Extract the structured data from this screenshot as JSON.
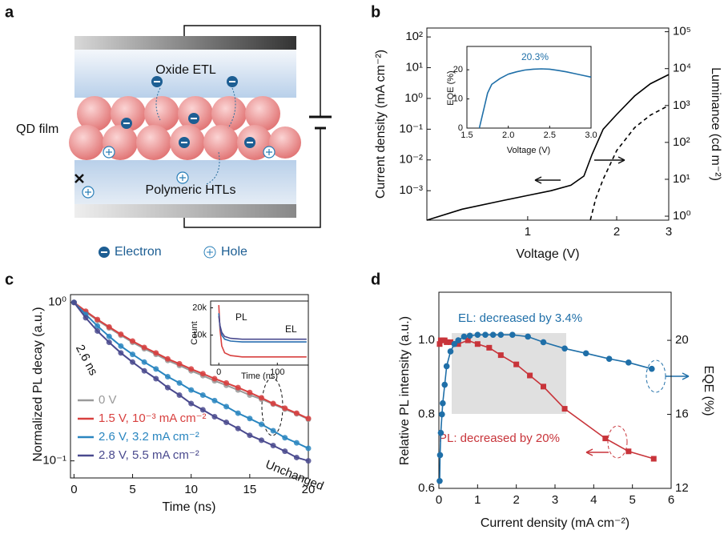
{
  "panel_labels": [
    "a",
    "b",
    "c",
    "d"
  ],
  "diagram": {
    "etl": "Oxide ETL",
    "qd": "QD film",
    "htl": "Polymeric HTLs",
    "legend_electron": "Electron",
    "legend_hole": "Hole"
  },
  "chart_data": [
    {
      "type": "line",
      "xlabel": "Voltage (V)",
      "ylabel": "Current density (mA cm⁻²)",
      "y2label": "Luminance (cd m⁻²)",
      "xscale": "log",
      "yscale": "log",
      "y2scale": "log",
      "xlim": [
        0.456,
        3
      ],
      "ylim": [
        0.00011,
        195
      ],
      "y2lim": [
        0.78,
        126000
      ],
      "xticks": [
        1,
        2,
        3
      ],
      "yticks": [
        {
          "value": 0.001,
          "label": "10⁻³"
        },
        {
          "value": 0.01,
          "label": "10⁻²"
        },
        {
          "value": 0.1,
          "label": "10⁻¹"
        },
        {
          "value": 1,
          "label": "10⁰"
        },
        {
          "value": 10,
          "label": "10¹"
        },
        {
          "value": 100,
          "label": "10²"
        }
      ],
      "y2ticks": [
        {
          "value": 1,
          "label": "10⁰"
        },
        {
          "value": 10,
          "label": "10¹"
        },
        {
          "value": 100,
          "label": "10²"
        },
        {
          "value": 1000,
          "label": "10³"
        },
        {
          "value": 10000,
          "label": "10⁴"
        },
        {
          "value": 100000,
          "label": "10⁵"
        }
      ],
      "series": [
        {
          "color": "#000000",
          "x": [
            0.456,
            0.6,
            0.8,
            1.0,
            1.2,
            1.4,
            1.55,
            1.65,
            1.8,
            2.0,
            2.3,
            2.6,
            3.0
          ],
          "values": [
            0.00011,
            0.00025,
            0.00045,
            0.0007,
            0.001,
            0.0015,
            0.003,
            0.015,
            0.1,
            0.3,
            1.2,
            3,
            6
          ]
        },
        {
          "color": "#000000",
          "line_style": "dashed",
          "axis": "y2",
          "x": [
            1.63,
            1.7,
            1.8,
            2.0,
            2.3,
            2.6,
            3.0
          ],
          "values": [
            0.8,
            3,
            10,
            60,
            250,
            550,
            1000
          ]
        }
      ]
    },
    {
      "type": "line",
      "xlabel": "Voltage (V)",
      "ylabel": "EQE (%)",
      "xlim": [
        1.5,
        3.0
      ],
      "ylim": [
        0,
        28
      ],
      "xticks": [
        {
          "value": 1.5,
          "label": "1.5"
        },
        {
          "value": 2,
          "label": "2.0"
        },
        {
          "value": 2.5,
          "label": "2.5"
        },
        {
          "value": 3,
          "label": "3.0"
        }
      ],
      "yticks": [
        0,
        10,
        20
      ],
      "annotations": [
        "20.3%"
      ],
      "series": [
        {
          "color": "#1f6fa8",
          "x": [
            1.65,
            1.7,
            1.75,
            1.8,
            1.9,
            2.0,
            2.1,
            2.2,
            2.3,
            2.4,
            2.5,
            2.6,
            2.7,
            2.8,
            2.9,
            3.0
          ],
          "values": [
            0,
            6,
            12,
            15,
            17,
            18.5,
            19.3,
            19.9,
            20.2,
            20.3,
            20.2,
            19.8,
            19.3,
            18.7,
            18.1,
            17.5
          ]
        }
      ]
    },
    {
      "type": "scatter",
      "xlabel": "Time (ns)",
      "ylabel": "Normalized PL decay (a.u.)",
      "yscale": "log",
      "xlim": [
        -0.3,
        20
      ],
      "ylim": [
        0.078,
        1.12
      ],
      "xticks": [
        0,
        5,
        10,
        15,
        20
      ],
      "yticks": [
        {
          "value": 0.1,
          "label": "10⁻¹"
        },
        {
          "value": 1,
          "label": "10⁰"
        }
      ],
      "annotations": [
        "2.6 ns",
        "Unchanged"
      ],
      "x": [
        0,
        1,
        2,
        3,
        4,
        5,
        6,
        7,
        8,
        9,
        10,
        11,
        12,
        13,
        14,
        15,
        16,
        17,
        18,
        19,
        20
      ],
      "series": [
        {
          "name": "0 V",
          "color": "#9a9a9a",
          "values": [
            1,
            0.87,
            0.77,
            0.69,
            0.62,
            0.56,
            0.51,
            0.47,
            0.43,
            0.4,
            0.37,
            0.345,
            0.32,
            0.3,
            0.28,
            0.26,
            0.245,
            0.228,
            0.212,
            0.198,
            0.183
          ]
        },
        {
          "name": "1.5 V, 10⁻³ mA cm⁻²",
          "color": "#d8403f",
          "values": [
            1,
            0.88,
            0.78,
            0.7,
            0.63,
            0.57,
            0.52,
            0.48,
            0.44,
            0.41,
            0.38,
            0.355,
            0.33,
            0.31,
            0.29,
            0.27,
            0.25,
            0.23,
            0.215,
            0.2,
            0.185
          ]
        },
        {
          "name": "2.6 V, 3.2 mA cm⁻²",
          "color": "#2a86c0",
          "values": [
            1,
            0.84,
            0.71,
            0.61,
            0.53,
            0.47,
            0.42,
            0.38,
            0.34,
            0.31,
            0.28,
            0.26,
            0.24,
            0.22,
            0.2,
            0.185,
            0.17,
            0.155,
            0.14,
            0.13,
            0.12
          ]
        },
        {
          "name": "2.8 V, 5.5 mA cm⁻²",
          "color": "#4a4a8e",
          "values": [
            1,
            0.8,
            0.66,
            0.56,
            0.48,
            0.42,
            0.37,
            0.33,
            0.29,
            0.26,
            0.23,
            0.21,
            0.19,
            0.175,
            0.16,
            0.145,
            0.135,
            0.125,
            0.115,
            0.105,
            0.1
          ]
        }
      ]
    },
    {
      "type": "line",
      "xlabel": "Time (ns)",
      "ylabel": "Count",
      "xlim": [
        -14,
        153
      ],
      "ylim": [
        -1000,
        22500
      ],
      "xticks": [
        0,
        100
      ],
      "yticks": [
        {
          "value": 10000,
          "label": "10k"
        },
        {
          "value": 20000,
          "label": "20k"
        }
      ],
      "annotations": [
        "PL",
        "EL"
      ],
      "x": [
        0,
        2,
        5,
        10,
        20,
        40,
        80,
        150
      ],
      "series": [
        {
          "color": "#d8403f",
          "values": [
            21000,
            12000,
            6000,
            3500,
            2500,
            2000,
            2000,
            2000
          ]
        },
        {
          "color": "#2a6fb0",
          "values": [
            18000,
            13000,
            10000,
            8500,
            7800,
            7500,
            7500,
            7500
          ]
        },
        {
          "color": "#4a4a8e",
          "values": [
            17000,
            13500,
            11000,
            9500,
            8800,
            8500,
            8500,
            8500
          ]
        }
      ]
    },
    {
      "type": "line",
      "xlabel": "Current density (mA cm⁻²)",
      "ylabel": "Relative PL intensity (a.u.)",
      "y2label": "EQE (%)",
      "xlim": [
        0,
        6
      ],
      "ylim": [
        0.6,
        1.13
      ],
      "y2lim": [
        12,
        22.6
      ],
      "xticks": [
        0,
        1,
        2,
        3,
        4,
        5,
        6
      ],
      "yticks": [
        0.6,
        0.8,
        {
          "value": 1,
          "label": "1.0"
        }
      ],
      "y2ticks": [
        12,
        16,
        20
      ],
      "annotations": [
        "EL: decreased by 3.4%",
        "PL: decreased by 20%"
      ],
      "series": [
        {
          "color": "#c8343a",
          "marker": "square",
          "x": [
            0.02,
            0.05,
            0.1,
            0.15,
            0.2,
            0.3,
            0.5,
            0.75,
            1.0,
            1.3,
            1.6,
            2.0,
            2.35,
            2.7,
            3.25,
            4.3,
            4.9,
            5.55
          ],
          "values": [
            0.99,
            1.0,
            1.0,
            1.0,
            0.995,
            0.995,
            0.99,
            1.0,
            0.99,
            0.98,
            0.96,
            0.935,
            0.905,
            0.875,
            0.815,
            0.735,
            0.7,
            0.68
          ]
        },
        {
          "color": "#1f6fa8",
          "marker": "circle",
          "axis": "y2",
          "x": [
            0.02,
            0.03,
            0.05,
            0.08,
            0.1,
            0.15,
            0.2,
            0.3,
            0.4,
            0.5,
            0.65,
            0.8,
            1.0,
            1.2,
            1.4,
            1.6,
            1.9,
            2.3,
            2.7,
            3.25,
            3.8,
            4.4,
            4.9,
            5.5
          ],
          "values": [
            12.4,
            13.8,
            15.0,
            16.0,
            16.6,
            17.6,
            18.6,
            19.4,
            19.8,
            20.0,
            20.2,
            20.25,
            20.3,
            20.3,
            20.3,
            20.3,
            20.3,
            20.2,
            19.9,
            19.56,
            19.3,
            19.0,
            18.8,
            18.46
          ]
        }
      ]
    }
  ]
}
